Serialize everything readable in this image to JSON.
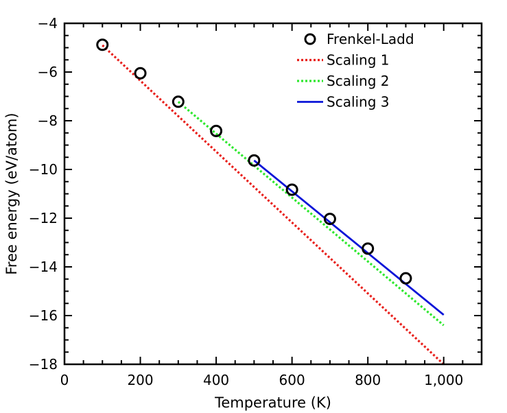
{
  "chart_data": {
    "type": "line",
    "xlabel": "Temperature (K)",
    "ylabel": "Free energy (eV/atom)",
    "xlim": [
      0,
      1100
    ],
    "ylim": [
      -18,
      -4
    ],
    "xticks": [
      0,
      200,
      400,
      600,
      800,
      1000
    ],
    "xtick_labels": [
      "0",
      "200",
      "400",
      "600",
      "800",
      "1,000"
    ],
    "yticks": [
      -4,
      -6,
      -8,
      -10,
      -12,
      -14,
      -16,
      -18
    ],
    "ytick_labels": [
      "−4",
      "−6",
      "−8",
      "−10",
      "−12",
      "−14",
      "−16",
      "−18"
    ],
    "legend_position": "top-right",
    "grid": false,
    "series": [
      {
        "name": "Frenkel-Ladd",
        "style": "markers",
        "marker": "open-circle",
        "color": "#000000",
        "x": [
          100,
          200,
          300,
          400,
          500,
          600,
          700,
          800,
          900
        ],
        "y": [
          -4.88,
          -6.05,
          -7.22,
          -8.42,
          -9.63,
          -10.83,
          -12.03,
          -13.25,
          -14.47
        ]
      },
      {
        "name": "Scaling 1",
        "style": "dotted",
        "color": "#e8201c",
        "x": [
          100,
          1000
        ],
        "y": [
          -4.9,
          -18.0
        ]
      },
      {
        "name": "Scaling 2",
        "style": "dotted",
        "color": "#2ee82e",
        "x": [
          300,
          1000
        ],
        "y": [
          -7.22,
          -16.4
        ]
      },
      {
        "name": "Scaling 3",
        "style": "solid",
        "color": "#0a14d8",
        "x": [
          500,
          1000
        ],
        "y": [
          -9.63,
          -15.97
        ]
      }
    ]
  }
}
